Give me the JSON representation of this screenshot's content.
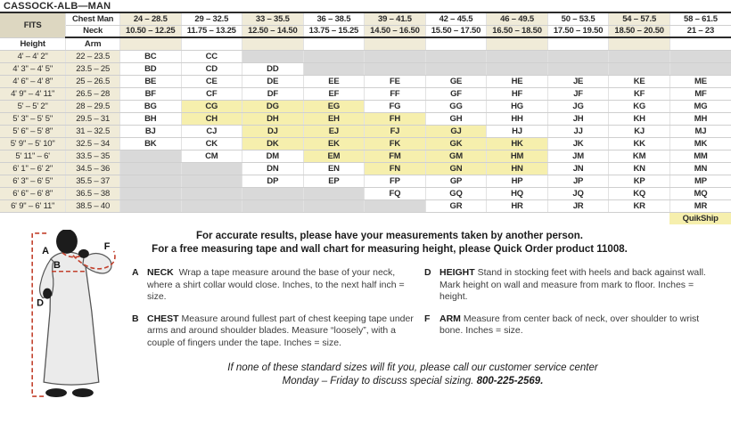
{
  "title": "CASSOCK-ALB—MAN",
  "colors": {
    "beige": "#f0ebd8",
    "beige_dark": "#ddd7c1",
    "quikship_yellow": "#f6efad",
    "unavailable_gray": "#d9d9d9",
    "figure_red": "#c2402c",
    "rule_dark": "#2b2b2b"
  },
  "table": {
    "fits_label": "FITS",
    "chest_label": "Chest Man",
    "neck_label": "Neck",
    "height_label": "Height",
    "arm_label": "Arm",
    "quikship_label": "QuikShip",
    "chest_ranges": [
      "24 – 28.5",
      "29 – 32.5",
      "33 – 35.5",
      "36 – 38.5",
      "39 – 41.5",
      "42 – 45.5",
      "46 – 49.5",
      "50 – 53.5",
      "54 – 57.5",
      "58 – 61.5"
    ],
    "neck_ranges": [
      "10.50 – 12.25",
      "11.75 – 13.25",
      "12.50 – 14.50",
      "13.75 – 15.25",
      "14.50 – 16.50",
      "15.50 – 17.50",
      "16.50 – 18.50",
      "17.50 – 19.50",
      "18.50 – 20.50",
      "21 – 23"
    ],
    "rows": [
      {
        "height": "4' – 4' 2\"",
        "arm": "22 – 23.5",
        "cells": [
          {
            "code": "BC",
            "state": "normal"
          },
          {
            "code": "CC",
            "state": "normal"
          },
          {
            "state": "na"
          },
          {
            "state": "na"
          },
          {
            "state": "na"
          },
          {
            "state": "na"
          },
          {
            "state": "na"
          },
          {
            "state": "na"
          },
          {
            "state": "na"
          },
          {
            "state": "na"
          }
        ]
      },
      {
        "height": "4' 3\" – 4' 5\"",
        "arm": "23.5 – 25",
        "cells": [
          {
            "code": "BD",
            "state": "normal"
          },
          {
            "code": "CD",
            "state": "normal"
          },
          {
            "code": "DD",
            "state": "normal"
          },
          {
            "state": "na"
          },
          {
            "state": "na"
          },
          {
            "state": "na"
          },
          {
            "state": "na"
          },
          {
            "state": "na"
          },
          {
            "state": "na"
          },
          {
            "state": "na"
          }
        ]
      },
      {
        "height": "4' 6\" – 4' 8\"",
        "arm": "25 – 26.5",
        "cells": [
          {
            "code": "BE",
            "state": "normal"
          },
          {
            "code": "CE",
            "state": "normal"
          },
          {
            "code": "DE",
            "state": "normal"
          },
          {
            "code": "EE",
            "state": "normal"
          },
          {
            "code": "FE",
            "state": "normal"
          },
          {
            "code": "GE",
            "state": "normal"
          },
          {
            "code": "HE",
            "state": "normal"
          },
          {
            "code": "JE",
            "state": "normal"
          },
          {
            "code": "KE",
            "state": "normal"
          },
          {
            "code": "ME",
            "state": "normal"
          }
        ]
      },
      {
        "height": "4' 9\" – 4' 11\"",
        "arm": "26.5 – 28",
        "cells": [
          {
            "code": "BF",
            "state": "normal"
          },
          {
            "code": "CF",
            "state": "normal"
          },
          {
            "code": "DF",
            "state": "normal"
          },
          {
            "code": "EF",
            "state": "normal"
          },
          {
            "code": "FF",
            "state": "normal"
          },
          {
            "code": "GF",
            "state": "normal"
          },
          {
            "code": "HF",
            "state": "normal"
          },
          {
            "code": "JF",
            "state": "normal"
          },
          {
            "code": "KF",
            "state": "normal"
          },
          {
            "code": "MF",
            "state": "normal"
          }
        ]
      },
      {
        "height": "5' – 5' 2\"",
        "arm": "28 – 29.5",
        "cells": [
          {
            "code": "BG",
            "state": "normal"
          },
          {
            "code": "CG",
            "state": "quikship"
          },
          {
            "code": "DG",
            "state": "quikship"
          },
          {
            "code": "EG",
            "state": "quikship"
          },
          {
            "code": "FG",
            "state": "normal"
          },
          {
            "code": "GG",
            "state": "normal"
          },
          {
            "code": "HG",
            "state": "normal"
          },
          {
            "code": "JG",
            "state": "normal"
          },
          {
            "code": "KG",
            "state": "normal"
          },
          {
            "code": "MG",
            "state": "normal"
          }
        ]
      },
      {
        "height": "5' 3\" – 5' 5\"",
        "arm": "29.5 – 31",
        "cells": [
          {
            "code": "BH",
            "state": "normal"
          },
          {
            "code": "CH",
            "state": "quikship"
          },
          {
            "code": "DH",
            "state": "quikship"
          },
          {
            "code": "EH",
            "state": "quikship"
          },
          {
            "code": "FH",
            "state": "quikship"
          },
          {
            "code": "GH",
            "state": "normal"
          },
          {
            "code": "HH",
            "state": "normal"
          },
          {
            "code": "JH",
            "state": "normal"
          },
          {
            "code": "KH",
            "state": "normal"
          },
          {
            "code": "MH",
            "state": "normal"
          }
        ]
      },
      {
        "height": "5' 6\" – 5' 8\"",
        "arm": "31 – 32.5",
        "cells": [
          {
            "code": "BJ",
            "state": "normal"
          },
          {
            "code": "CJ",
            "state": "normal"
          },
          {
            "code": "DJ",
            "state": "quikship"
          },
          {
            "code": "EJ",
            "state": "quikship"
          },
          {
            "code": "FJ",
            "state": "quikship"
          },
          {
            "code": "GJ",
            "state": "quikship"
          },
          {
            "code": "HJ",
            "state": "normal"
          },
          {
            "code": "JJ",
            "state": "normal"
          },
          {
            "code": "KJ",
            "state": "normal"
          },
          {
            "code": "MJ",
            "state": "normal"
          }
        ]
      },
      {
        "height": "5' 9\" – 5' 10\"",
        "arm": "32.5 – 34",
        "cells": [
          {
            "code": "BK",
            "state": "normal"
          },
          {
            "code": "CK",
            "state": "normal"
          },
          {
            "code": "DK",
            "state": "quikship"
          },
          {
            "code": "EK",
            "state": "quikship"
          },
          {
            "code": "FK",
            "state": "quikship"
          },
          {
            "code": "GK",
            "state": "quikship"
          },
          {
            "code": "HK",
            "state": "quikship"
          },
          {
            "code": "JK",
            "state": "normal"
          },
          {
            "code": "KK",
            "state": "normal"
          },
          {
            "code": "MK",
            "state": "normal"
          }
        ]
      },
      {
        "height": "5' 11\" – 6'",
        "arm": "33.5 – 35",
        "cells": [
          {
            "state": "na"
          },
          {
            "code": "CM",
            "state": "normal"
          },
          {
            "code": "DM",
            "state": "normal"
          },
          {
            "code": "EM",
            "state": "quikship"
          },
          {
            "code": "FM",
            "state": "quikship"
          },
          {
            "code": "GM",
            "state": "quikship"
          },
          {
            "code": "HM",
            "state": "quikship"
          },
          {
            "code": "JM",
            "state": "normal"
          },
          {
            "code": "KM",
            "state": "normal"
          },
          {
            "code": "MM",
            "state": "normal"
          }
        ]
      },
      {
        "height": "6' 1\" – 6' 2\"",
        "arm": "34.5 – 36",
        "cells": [
          {
            "state": "na"
          },
          {
            "state": "na"
          },
          {
            "code": "DN",
            "state": "normal"
          },
          {
            "code": "EN",
            "state": "normal"
          },
          {
            "code": "FN",
            "state": "quikship"
          },
          {
            "code": "GN",
            "state": "quikship"
          },
          {
            "code": "HN",
            "state": "quikship"
          },
          {
            "code": "JN",
            "state": "normal"
          },
          {
            "code": "KN",
            "state": "normal"
          },
          {
            "code": "MN",
            "state": "normal"
          }
        ]
      },
      {
        "height": "6' 3\" – 6' 5\"",
        "arm": "35.5 – 37",
        "cells": [
          {
            "state": "na"
          },
          {
            "state": "na"
          },
          {
            "code": "DP",
            "state": "normal"
          },
          {
            "code": "EP",
            "state": "normal"
          },
          {
            "code": "FP",
            "state": "normal"
          },
          {
            "code": "GP",
            "state": "normal"
          },
          {
            "code": "HP",
            "state": "normal"
          },
          {
            "code": "JP",
            "state": "normal"
          },
          {
            "code": "KP",
            "state": "normal"
          },
          {
            "code": "MP",
            "state": "normal"
          }
        ]
      },
      {
        "height": "6' 6\" – 6' 8\"",
        "arm": "36.5 – 38",
        "cells": [
          {
            "state": "na"
          },
          {
            "state": "na"
          },
          {
            "state": "na"
          },
          {
            "state": "na"
          },
          {
            "code": "FQ",
            "state": "normal"
          },
          {
            "code": "GQ",
            "state": "normal"
          },
          {
            "code": "HQ",
            "state": "normal"
          },
          {
            "code": "JQ",
            "state": "normal"
          },
          {
            "code": "KQ",
            "state": "normal"
          },
          {
            "code": "MQ",
            "state": "normal"
          }
        ]
      },
      {
        "height": "6' 9\" – 6' 11\"",
        "arm": "38.5 – 40",
        "cells": [
          {
            "state": "na"
          },
          {
            "state": "na"
          },
          {
            "state": "na"
          },
          {
            "state": "na"
          },
          {
            "state": "na"
          },
          {
            "code": "GR",
            "state": "normal"
          },
          {
            "code": "HR",
            "state": "normal"
          },
          {
            "code": "JR",
            "state": "normal"
          },
          {
            "code": "KR",
            "state": "normal"
          },
          {
            "code": "MR",
            "state": "normal"
          }
        ]
      }
    ]
  },
  "intro": {
    "line1": "For accurate results, please have your measurements taken by another person.",
    "line2": "For a free measuring tape and wall chart for measuring height, please Quick Order product 11008."
  },
  "notes": [
    {
      "letter": "A",
      "term": "NECK",
      "text": "Wrap a tape measure around the base of your neck, where a shirt collar would close. Inches, to the next half inch = size."
    },
    {
      "letter": "B",
      "term": "CHEST",
      "text": "Measure around fullest part of chest keeping tape under arms and around shoulder blades. Measure “loosely”, with a couple of fingers under the tape. Inches = size."
    },
    {
      "letter": "D",
      "term": "HEIGHT",
      "text": "Stand in stocking feet with heels and back against wall. Mark height on wall and measure from mark to floor. Inches = height."
    },
    {
      "letter": "F",
      "term": "ARM",
      "text": "Measure from center back of neck, over shoulder to wrist bone. Inches = size."
    }
  ],
  "figure": {
    "labels": {
      "a": "A",
      "b": "B",
      "d": "D",
      "f": "F"
    }
  },
  "footer": {
    "line1": "If none of these standard sizes will fit you, please call our customer service center",
    "line2": "Monday – Friday to discuss special sizing.",
    "phone": "800-225-2569."
  }
}
